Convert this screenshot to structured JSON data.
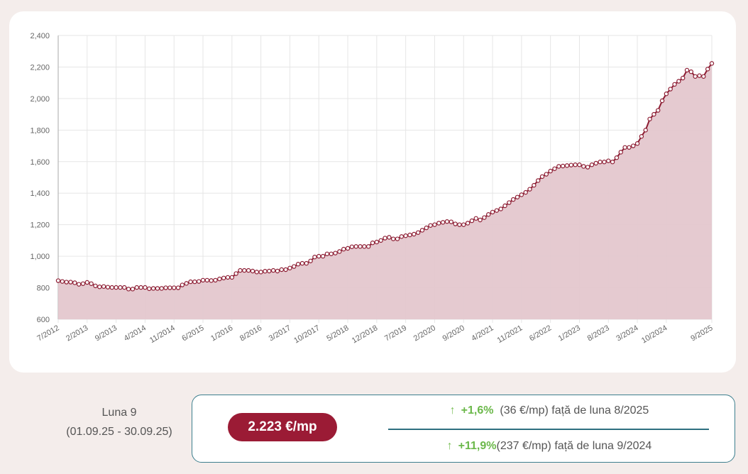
{
  "colors": {
    "line": "#8c1c32",
    "fill": "#e4c7cd",
    "accent": "#9b1b35",
    "up": "#6bb84a",
    "border": "#3d7f8e"
  },
  "chart_data": {
    "type": "area",
    "x_start": "7/2012",
    "x_end": "9/2025",
    "x_interval": "monthly",
    "ylim": [
      600,
      2400
    ],
    "yticks": [
      "600",
      "800",
      "1,000",
      "1,200",
      "1,400",
      "1,600",
      "1,800",
      "2,000",
      "2,200",
      "2,400"
    ],
    "xticks": [
      "7/2012",
      "2/2013",
      "9/2013",
      "4/2014",
      "11/2014",
      "6/2015",
      "1/2016",
      "8/2016",
      "3/2017",
      "10/2017",
      "5/2018",
      "12/2018",
      "7/2019",
      "2/2020",
      "9/2020",
      "4/2021",
      "11/2021",
      "6/2022",
      "1/2023",
      "8/2023",
      "3/2024",
      "10/2024",
      "9/2025"
    ],
    "grid": true,
    "values": [
      845,
      840,
      836,
      836,
      832,
      822,
      826,
      834,
      826,
      812,
      806,
      808,
      804,
      802,
      802,
      802,
      802,
      792,
      792,
      802,
      802,
      802,
      794,
      796,
      796,
      796,
      800,
      800,
      800,
      800,
      818,
      828,
      838,
      838,
      840,
      848,
      848,
      846,
      848,
      856,
      862,
      866,
      866,
      890,
      910,
      910,
      910,
      906,
      900,
      900,
      905,
      906,
      910,
      906,
      915,
      915,
      925,
      935,
      950,
      955,
      955,
      970,
      995,
      1000,
      1000,
      1015,
      1015,
      1020,
      1030,
      1045,
      1050,
      1060,
      1062,
      1062,
      1062,
      1062,
      1085,
      1090,
      1100,
      1115,
      1120,
      1110,
      1110,
      1125,
      1130,
      1135,
      1140,
      1150,
      1165,
      1180,
      1195,
      1200,
      1210,
      1215,
      1220,
      1218,
      1205,
      1200,
      1200,
      1210,
      1225,
      1240,
      1230,
      1245,
      1265,
      1280,
      1290,
      1300,
      1320,
      1340,
      1360,
      1375,
      1390,
      1405,
      1425,
      1450,
      1480,
      1505,
      1520,
      1540,
      1555,
      1570,
      1572,
      1575,
      1578,
      1580,
      1580,
      1570,
      1565,
      1580,
      1590,
      1598,
      1598,
      1605,
      1598,
      1625,
      1660,
      1690,
      1690,
      1700,
      1715,
      1760,
      1800,
      1870,
      1900,
      1925,
      1986,
      2030,
      2060,
      2090,
      2110,
      2130,
      2180,
      2170,
      2140,
      2145,
      2140,
      2187,
      2223
    ]
  },
  "period": {
    "label": "Luna 9",
    "range": "(01.09.25 - 30.09.25)"
  },
  "summary": {
    "price": "2.223 €/mp",
    "monthly": {
      "arrow": "↑",
      "pct": "+1,6%",
      "abs": "(36 €/mp)",
      "text": "față de luna 8/2025"
    },
    "yearly": {
      "arrow": "↑",
      "pct": "+11,9%",
      "abs": "(237 €/mp)",
      "text": "față de luna 9/2024"
    }
  }
}
